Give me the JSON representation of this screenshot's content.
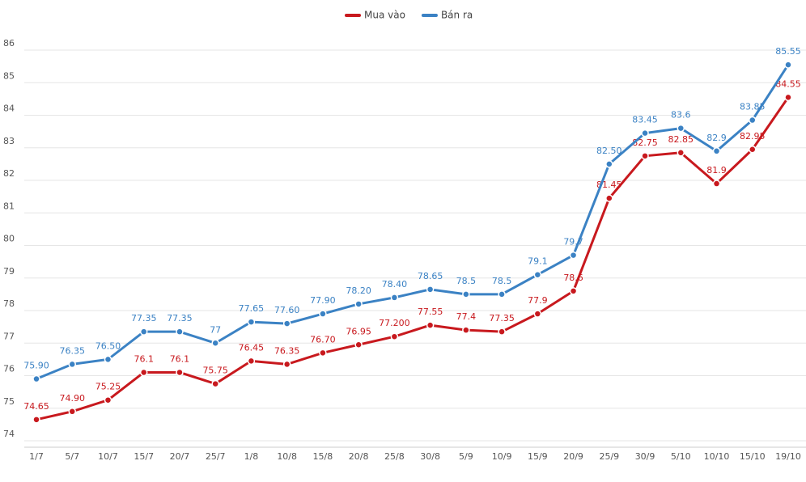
{
  "chart_data": {
    "type": "line",
    "categories": [
      "1/7",
      "5/7",
      "10/7",
      "15/7",
      "20/7",
      "25/7",
      "1/8",
      "10/8",
      "15/8",
      "20/8",
      "25/8",
      "30/8",
      "5/9",
      "10/9",
      "15/9",
      "20/9",
      "25/9",
      "30/9",
      "5/10",
      "10/10",
      "15/10",
      "19/10"
    ],
    "series": [
      {
        "name": "Mua vào",
        "color": "#c8191e",
        "values": [
          74.65,
          74.9,
          75.25,
          76.1,
          76.1,
          75.75,
          76.45,
          76.35,
          76.7,
          76.95,
          77.2,
          77.55,
          77.4,
          77.35,
          77.9,
          78.6,
          81.45,
          82.75,
          82.85,
          81.9,
          82.95,
          84.55
        ],
        "value_labels": [
          "74.65",
          "74.90",
          "75.25",
          "76.1",
          "76.1",
          "75.75",
          "76.45",
          "76.35",
          "76.70",
          "76.95",
          "77.200",
          "77.55",
          "77.4",
          "77.35",
          "77.9",
          "78.6",
          "81.45",
          "82.75",
          "82.85",
          "81.9",
          "82.95",
          "84.55"
        ]
      },
      {
        "name": "Bán ra",
        "color": "#3b82c4",
        "values": [
          75.9,
          76.35,
          76.5,
          77.35,
          77.35,
          77,
          77.65,
          77.6,
          77.9,
          78.2,
          78.4,
          78.65,
          78.5,
          78.5,
          79.1,
          79.7,
          82.5,
          83.45,
          83.6,
          82.9,
          83.85,
          85.55
        ],
        "value_labels": [
          "75.90",
          "76.35",
          "76.50",
          "77.35",
          "77.35",
          "77",
          "77.65",
          "77.60",
          "77.90",
          "78.20",
          "78.40",
          "78.65",
          "78.5",
          "78.5",
          "79.1",
          "79.7",
          "82.50",
          "83.45",
          "83.6",
          "82.9",
          "83.85",
          "85.55"
        ]
      }
    ],
    "ylim": [
      74,
      86
    ],
    "yticks": [
      74,
      75,
      76,
      77,
      78,
      79,
      80,
      81,
      82,
      83,
      84,
      85,
      86
    ],
    "grid": true,
    "legend": "top"
  }
}
